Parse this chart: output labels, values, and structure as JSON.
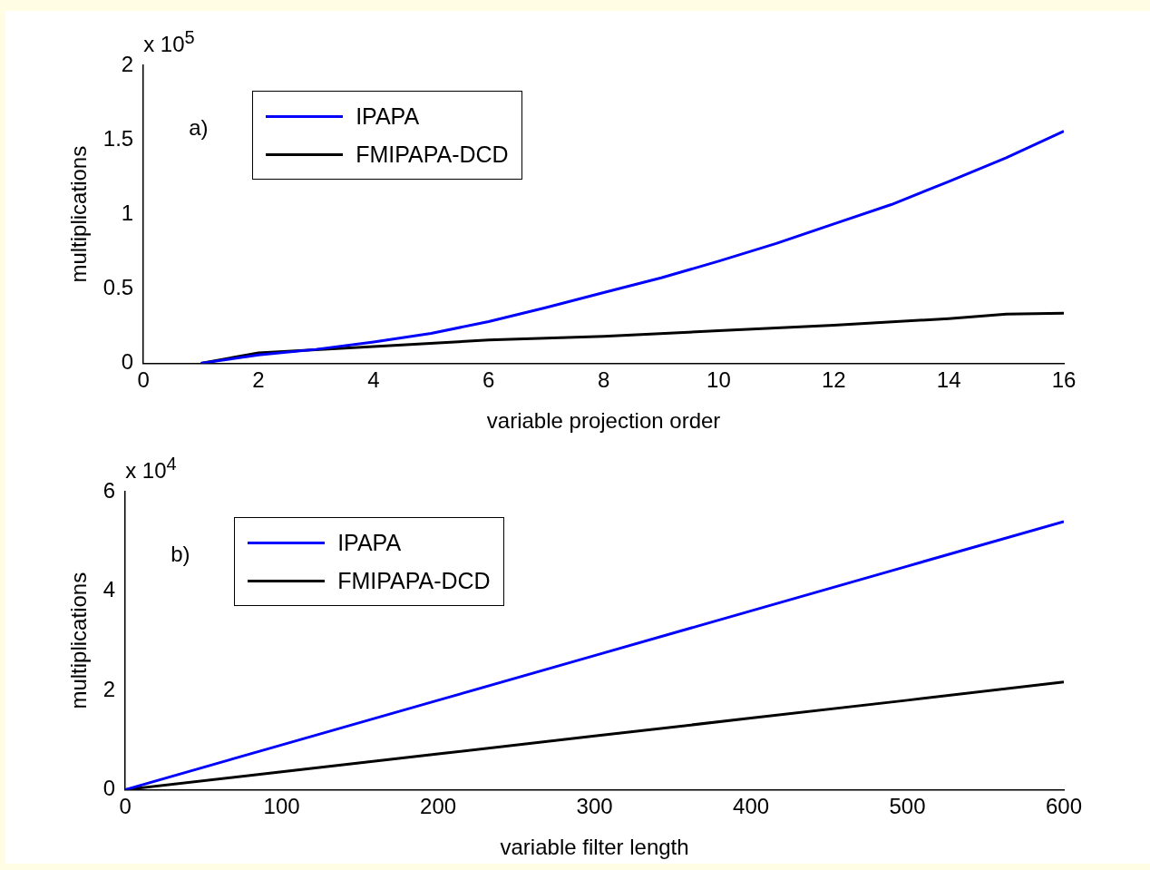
{
  "chart_data": [
    {
      "type": "line",
      "xlabel": "variable projection order",
      "ylabel": "multiplications",
      "annotations": [
        "x 10$^{5}$",
        "a)"
      ],
      "xlim": [
        0,
        16
      ],
      "xticks": [
        0,
        2,
        4,
        6,
        8,
        10,
        12,
        14,
        16
      ],
      "ylim": [
        0,
        2
      ],
      "yticks": [
        0,
        0.5,
        1,
        1.5,
        2
      ],
      "grid": false,
      "legend": "top left",
      "marker": "none",
      "line_style": "solid",
      "series": [
        {
          "name": "IPAPA",
          "color": "#0000ff",
          "x": [
            1,
            2,
            3,
            4,
            5,
            6,
            7,
            8,
            9,
            10,
            11,
            12,
            13,
            14,
            15,
            16
          ],
          "values": [
            0,
            0.056,
            0.093,
            0.143,
            0.2,
            0.28,
            0.374,
            0.474,
            0.573,
            0.685,
            0.804,
            0.935,
            1.065,
            1.22,
            1.38,
            1.558
          ]
        },
        {
          "name": "FMIPAPA-DCD",
          "color": "#000000",
          "x": [
            1,
            2,
            4,
            6,
            8,
            10,
            12,
            14,
            15,
            16
          ],
          "values": [
            0,
            0.069,
            0.112,
            0.156,
            0.18,
            0.218,
            0.255,
            0.3,
            0.33,
            0.336
          ]
        }
      ]
    },
    {
      "type": "line",
      "xlabel": "variable filter length",
      "ylabel": "multiplications",
      "annotations": [
        "x 10$^{4}$",
        "b)"
      ],
      "xlim": [
        0,
        600
      ],
      "xticks": [
        0,
        100,
        200,
        300,
        400,
        500,
        600
      ],
      "ylim": [
        0,
        6
      ],
      "yticks": [
        0,
        2,
        4,
        6
      ],
      "grid": false,
      "legend": "top left",
      "marker": "none",
      "line_style": "solid",
      "series": [
        {
          "name": "IPAPA",
          "color": "#0000ff",
          "x": [
            0,
            100,
            200,
            300,
            400,
            500,
            600
          ],
          "values": [
            0,
            0.9,
            1.8,
            2.7,
            3.6,
            4.5,
            5.4
          ]
        },
        {
          "name": "FMIPAPA-DCD",
          "color": "#000000",
          "x": [
            0,
            100,
            200,
            300,
            400,
            500,
            600
          ],
          "values": [
            0,
            0.36,
            0.72,
            1.08,
            1.44,
            1.8,
            2.17
          ]
        }
      ]
    }
  ]
}
